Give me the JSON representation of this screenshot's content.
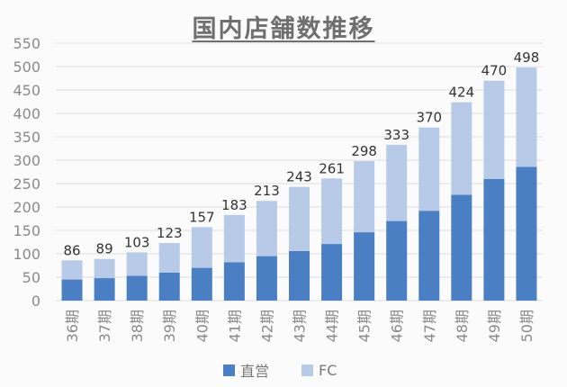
{
  "chart_data": {
    "type": "bar",
    "stacked": true,
    "title": "国内店舗数推移",
    "categories": [
      "36期",
      "37期",
      "38期",
      "39期",
      "40期",
      "41期",
      "42期",
      "43期",
      "44期",
      "45期",
      "46期",
      "47期",
      "48期",
      "49期",
      "50期"
    ],
    "series": [
      {
        "name": "直営",
        "color": "#4a7fc4",
        "values": [
          45,
          48,
          53,
          60,
          70,
          82,
          95,
          106,
          121,
          146,
          170,
          192,
          226,
          260,
          286
        ]
      },
      {
        "name": "FC",
        "color": "#b7cbe8",
        "values": [
          41,
          41,
          50,
          63,
          87,
          101,
          118,
          137,
          140,
          152,
          163,
          178,
          198,
          210,
          212
        ]
      }
    ],
    "totals": [
      86,
      89,
      103,
      123,
      157,
      183,
      213,
      243,
      261,
      298,
      333,
      370,
      424,
      470,
      498
    ],
    "ylim": [
      0,
      550
    ],
    "yticks": [
      0,
      50,
      100,
      150,
      200,
      250,
      300,
      350,
      400,
      450,
      500,
      550
    ],
    "legend_position": "bottom",
    "grid": true
  }
}
